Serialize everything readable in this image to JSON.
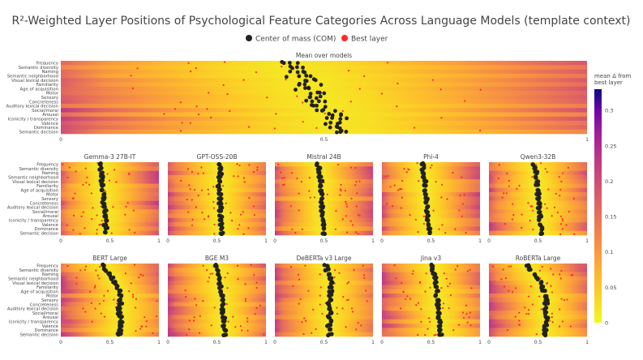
{
  "title": "R²-Weighted Layer Positions of Psychological Feature Categories Across Language Models (template context)",
  "legend": {
    "items": [
      {
        "label": "Center of mass (COM)",
        "color": "#222222"
      },
      {
        "label": "Best layer",
        "color": "#ff2a2a"
      }
    ]
  },
  "colorbar": {
    "title_line1": "mean Δ from",
    "title_line2": "best layer",
    "ticks": [
      "0",
      "0.05",
      "0.1",
      "0.15",
      "0.2",
      "0.25",
      "0.3"
    ],
    "range": [
      0,
      0.33
    ],
    "colorscale": "plasma-reversed"
  },
  "chart_data": {
    "type": "heatmap",
    "features": [
      "Frequency",
      "Semantic diversity",
      "Naming",
      "Semantic neighborhood",
      "Visual lexical decision",
      "Familiarity",
      "Age of acquisition",
      "Motor",
      "Sensory",
      "Concreteness",
      "Auditory lexical decision",
      "Social/moral",
      "Arousal",
      "Iconicity / transparency",
      "Valence",
      "Dominance",
      "Semantic decision"
    ],
    "xlim": [
      0,
      1
    ],
    "x_ticks": [
      "0",
      "0.5",
      "1"
    ],
    "x_ticks_small": [
      "0",
      "0.5",
      "1"
    ],
    "panels": [
      {
        "title": "Mean over models",
        "com": [
          0.43,
          0.44,
          0.44,
          0.45,
          0.47,
          0.47,
          0.47,
          0.48,
          0.49,
          0.49,
          0.5,
          0.51,
          0.51,
          0.52,
          0.52,
          0.52,
          0.53
        ],
        "spread": 0.05
      },
      {
        "title": "Gemma-3 27B-IT",
        "com": [
          0.41,
          0.41,
          0.42,
          0.42,
          0.42,
          0.43,
          0.43,
          0.43,
          0.44,
          0.43,
          0.44,
          0.45,
          0.45,
          0.46,
          0.45,
          0.46,
          0.46
        ],
        "spread": 0.03
      },
      {
        "title": "GPT-OSS-20B",
        "com": [
          0.53,
          0.53,
          0.54,
          0.53,
          0.53,
          0.52,
          0.53,
          0.53,
          0.53,
          0.53,
          0.54,
          0.53,
          0.54,
          0.54,
          0.54,
          0.55,
          0.55
        ],
        "spread": 0.03
      },
      {
        "title": "Mistral 24B",
        "com": [
          0.43,
          0.45,
          0.45,
          0.46,
          0.47,
          0.47,
          0.47,
          0.47,
          0.47,
          0.48,
          0.48,
          0.48,
          0.48,
          0.49,
          0.49,
          0.49,
          0.5
        ],
        "spread": 0.03
      },
      {
        "title": "Phi-4",
        "com": [
          0.42,
          0.42,
          0.43,
          0.43,
          0.44,
          0.44,
          0.44,
          0.45,
          0.45,
          0.45,
          0.46,
          0.46,
          0.47,
          0.47,
          0.48,
          0.48,
          0.49
        ],
        "spread": 0.03
      },
      {
        "title": "Qwen3-32B",
        "com": [
          0.46,
          0.47,
          0.48,
          0.48,
          0.49,
          0.49,
          0.5,
          0.5,
          0.5,
          0.51,
          0.51,
          0.52,
          0.52,
          0.52,
          0.53,
          0.53,
          0.54
        ],
        "spread": 0.03
      },
      {
        "title": "BERT Large",
        "com": [
          0.43,
          0.45,
          0.5,
          0.53,
          0.55,
          0.58,
          0.6,
          0.6,
          0.61,
          0.61,
          0.6,
          0.6,
          0.61,
          0.62,
          0.61,
          0.6,
          0.6
        ],
        "spread": 0.04
      },
      {
        "title": "BGE M3",
        "com": [
          0.49,
          0.51,
          0.52,
          0.52,
          0.53,
          0.54,
          0.54,
          0.55,
          0.55,
          0.56,
          0.56,
          0.56,
          0.57,
          0.57,
          0.57,
          0.58,
          0.58
        ],
        "spread": 0.03
      },
      {
        "title": "DeBERTa v3 Large",
        "com": [
          0.52,
          0.53,
          0.55,
          0.56,
          0.57,
          0.57,
          0.57,
          0.57,
          0.56,
          0.55,
          0.56,
          0.56,
          0.55,
          0.56,
          0.55,
          0.55,
          0.56
        ],
        "spread": 0.04
      },
      {
        "title": "Jina v3",
        "com": [
          0.51,
          0.52,
          0.53,
          0.54,
          0.55,
          0.55,
          0.56,
          0.56,
          0.57,
          0.57,
          0.57,
          0.58,
          0.58,
          0.59,
          0.59,
          0.59,
          0.6
        ],
        "spread": 0.03
      },
      {
        "title": "RoBERTa Large",
        "com": [
          0.39,
          0.42,
          0.47,
          0.5,
          0.53,
          0.55,
          0.56,
          0.57,
          0.58,
          0.58,
          0.58,
          0.58,
          0.59,
          0.59,
          0.58,
          0.58,
          0.58
        ],
        "spread": 0.04
      }
    ]
  }
}
